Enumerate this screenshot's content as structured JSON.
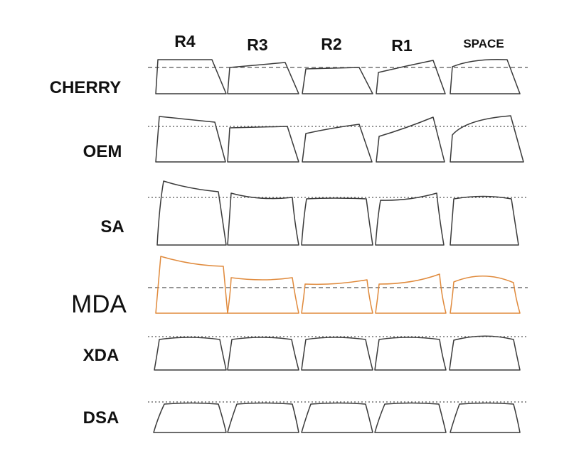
{
  "columns": [
    "R4",
    "R3",
    "R2",
    "R1",
    "SPACE"
  ],
  "rows": [
    {
      "name": "CHERRY",
      "highlight": false
    },
    {
      "name": "OEM",
      "highlight": false
    },
    {
      "name": "SA",
      "highlight": false
    },
    {
      "name": "MDA",
      "highlight": true
    },
    {
      "name": "XDA",
      "highlight": false
    },
    {
      "name": "DSA",
      "highlight": false
    }
  ],
  "colors": {
    "outline": "#3a3a3a",
    "guide": "#555555",
    "text": "#111111",
    "accent": "#e08a3c",
    "background": "#ffffff"
  }
}
